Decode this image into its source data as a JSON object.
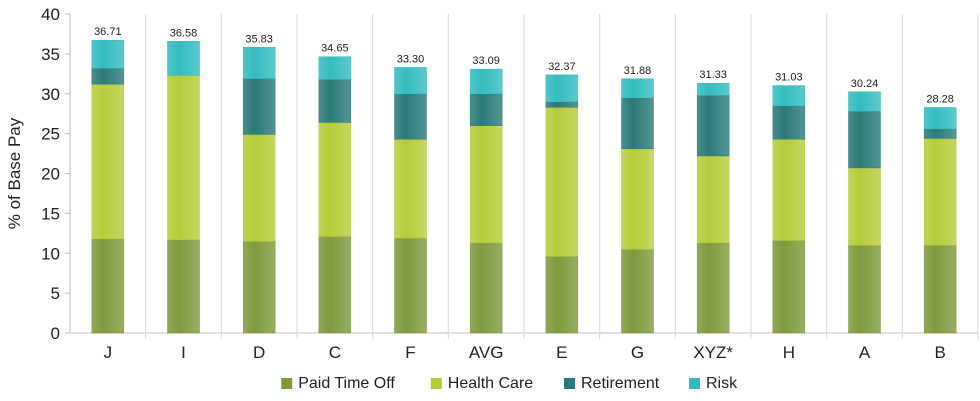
{
  "chart_data": {
    "type": "bar",
    "stacked": true,
    "title": "",
    "xlabel": "",
    "ylabel": "% of Base Pay",
    "ylim": [
      0,
      40
    ],
    "yticks": [
      0,
      5,
      10,
      15,
      20,
      25,
      30,
      35,
      40
    ],
    "grid": "vertical separators between categories",
    "legend_position": "bottom",
    "categories": [
      "J",
      "I",
      "D",
      "C",
      "F",
      "AVG",
      "E",
      "G",
      "XYZ*",
      "H",
      "A",
      "B"
    ],
    "totals_labels": [
      "36.71",
      "36.58",
      "35.83",
      "34.65",
      "33.30",
      "33.09",
      "32.37",
      "31.88",
      "31.33",
      "31.03",
      "30.24",
      "28.28"
    ],
    "series": [
      {
        "name": "Paid Time Off",
        "color": "#7e9a3c",
        "values": [
          11.8,
          11.7,
          11.5,
          12.1,
          11.9,
          11.3,
          9.6,
          10.5,
          11.3,
          11.6,
          11.0,
          11.0
        ]
      },
      {
        "name": "Health Care",
        "color": "#b6cc3a",
        "values": [
          19.4,
          20.6,
          13.4,
          14.3,
          12.4,
          14.7,
          18.7,
          12.6,
          10.9,
          12.7,
          9.7,
          13.4
        ]
      },
      {
        "name": "Retirement",
        "color": "#2a7a78",
        "values": [
          2.0,
          0.0,
          7.0,
          5.4,
          5.7,
          4.0,
          0.7,
          6.4,
          7.6,
          4.2,
          7.1,
          1.2
        ]
      },
      {
        "name": "Risk",
        "color": "#33bcc0",
        "values": [
          3.51,
          4.28,
          3.93,
          2.85,
          3.3,
          3.09,
          3.37,
          2.38,
          1.53,
          2.53,
          2.44,
          2.68
        ]
      }
    ]
  }
}
